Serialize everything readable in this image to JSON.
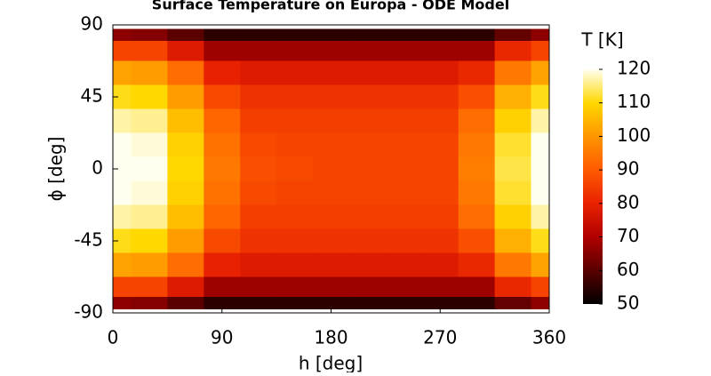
{
  "chart_data": {
    "type": "contour",
    "title": "Surface Temperature on Europa - ODE Model",
    "xlabel": "h [deg]",
    "ylabel": "ϕ [deg]",
    "colorbar_label": "T [K]",
    "x": [
      0,
      30,
      60,
      90,
      120,
      150,
      180,
      210,
      240,
      270,
      300,
      330,
      360
    ],
    "y": [
      85,
      75,
      60,
      45,
      30,
      15,
      0,
      -15,
      -30,
      -45,
      -60,
      -75,
      -85
    ],
    "z": [
      [
        66,
        65,
        60,
        55,
        55,
        55,
        55,
        55,
        55,
        55,
        55,
        61,
        66
      ],
      [
        86,
        86,
        78,
        68,
        68,
        68,
        68,
        68,
        68,
        68,
        68,
        81,
        86
      ],
      [
        102,
        101,
        93,
        80,
        78,
        78,
        78,
        78,
        78,
        78,
        81,
        95,
        102
      ],
      [
        111,
        110,
        101,
        87,
        83,
        83,
        83,
        83,
        83,
        83,
        88,
        104,
        111
      ],
      [
        117,
        116,
        106,
        92,
        85,
        85,
        85,
        85,
        85,
        85,
        93,
        109,
        117
      ],
      [
        120,
        119,
        109,
        94,
        87,
        86,
        86,
        86,
        86,
        86,
        95,
        112,
        120
      ],
      [
        121,
        120,
        110,
        95,
        88,
        87,
        86,
        86,
        86,
        86,
        96,
        113,
        121
      ],
      [
        120,
        119,
        109,
        94,
        87,
        86,
        86,
        86,
        86,
        86,
        95,
        112,
        120
      ],
      [
        117,
        116,
        106,
        92,
        85,
        85,
        85,
        85,
        85,
        85,
        93,
        109,
        117
      ],
      [
        111,
        110,
        101,
        87,
        83,
        83,
        83,
        83,
        83,
        83,
        88,
        104,
        111
      ],
      [
        102,
        101,
        93,
        80,
        78,
        78,
        78,
        78,
        78,
        78,
        81,
        95,
        102
      ],
      [
        86,
        86,
        78,
        68,
        68,
        68,
        68,
        68,
        68,
        68,
        68,
        81,
        86
      ],
      [
        66,
        65,
        60,
        55,
        55,
        55,
        55,
        55,
        55,
        55,
        55,
        61,
        66
      ]
    ],
    "xlim": [
      0,
      360
    ],
    "xticks": [
      0,
      90,
      180,
      270,
      360
    ],
    "ylim": [
      -90,
      90
    ],
    "yticks": [
      -90,
      -45,
      0,
      45,
      90
    ],
    "clim": [
      50,
      120
    ],
    "cticks": [
      50,
      60,
      70,
      80,
      90,
      100,
      110,
      120
    ],
    "colormap": [
      "#000000",
      "#5a0000",
      "#b00000",
      "#e82200",
      "#ff5a00",
      "#ff9600",
      "#ffd800",
      "#fffff0"
    ]
  }
}
